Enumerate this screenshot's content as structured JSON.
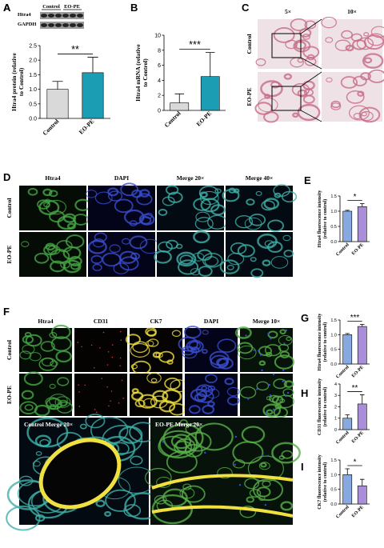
{
  "blot": {
    "panel": "A",
    "lanes": [
      "Control",
      "EO-PE"
    ],
    "rows": [
      "Htra4",
      "GAPDH"
    ]
  },
  "image_panels": [
    {
      "panel": "C",
      "columns": [
        "5×",
        "10×"
      ],
      "rows": [
        "Control",
        "EO-PE"
      ]
    },
    {
      "panel": "D",
      "columns": [
        "Htra4",
        "DAPI",
        "Merge 20×",
        "Merge 40×"
      ],
      "rows": [
        "Control",
        "EO-PE"
      ]
    },
    {
      "panel": "F",
      "columns": [
        "Htra4",
        "CD31",
        "CK7",
        "DAPI",
        "Merge 10×"
      ],
      "rows": [
        "Control",
        "EO-PE"
      ],
      "merges": [
        "Control Merge 20×",
        "EO-PE Merge 20×"
      ]
    }
  ],
  "chart_data": [
    {
      "type": "bar",
      "panel": "A",
      "ylabel": [
        "Htra4 protein (relative",
        "to Control)"
      ],
      "categories": [
        "Control",
        "EO-PE"
      ],
      "values": [
        1.0,
        1.57
      ],
      "errors": [
        0.27,
        0.53
      ],
      "colors": [
        "#d9d9d9",
        "#1b9db3"
      ],
      "ylim": [
        0,
        2.5
      ],
      "yticks": [
        {
          "value": 0,
          "label": "0.0"
        },
        0.5,
        {
          "value": 1,
          "label": "1.0"
        },
        1.5,
        {
          "value": 2,
          "label": "2.0"
        },
        2.5
      ],
      "significance": "**"
    },
    {
      "type": "bar",
      "panel": "B",
      "ylabel": [
        "Htra4 mRNA (relative",
        "to Control)"
      ],
      "categories": [
        "Control",
        "EO-PE"
      ],
      "values": [
        1.0,
        4.5
      ],
      "errors": [
        1.2,
        3.2
      ],
      "colors": [
        "#d9d9d9",
        "#1b9db3"
      ],
      "ylim": [
        0,
        10
      ],
      "yticks": [
        0,
        2,
        4,
        6,
        8,
        10
      ],
      "significance": "***"
    },
    {
      "type": "bar",
      "panel": "E",
      "ylabel": [
        "Htra4 fluorescence intensity",
        "(relative to control)"
      ],
      "categories": [
        "Control",
        "EO-PE"
      ],
      "values": [
        1.0,
        1.15
      ],
      "errors": [
        0.03,
        0.1
      ],
      "colors": [
        "#86a9e2",
        "#ab8ed9"
      ],
      "ylim": [
        0,
        1.5
      ],
      "yticks": [
        {
          "value": 0,
          "label": "0.0"
        },
        0.5,
        {
          "value": 1,
          "label": "1.0"
        },
        1.5
      ],
      "significance": "*"
    },
    {
      "type": "bar",
      "panel": "G",
      "ylabel": [
        "Htra4 fluorescence intensity",
        "(relative to control)"
      ],
      "categories": [
        "Control",
        "EO-PE"
      ],
      "values": [
        1.0,
        1.28
      ],
      "errors": [
        0.04,
        0.07
      ],
      "colors": [
        "#86a9e2",
        "#ab8ed9"
      ],
      "ylim": [
        0,
        1.5
      ],
      "yticks": [
        {
          "value": 0,
          "label": "0.0"
        },
        0.5,
        {
          "value": 1,
          "label": "1.0"
        },
        1.5
      ],
      "significance": "***"
    },
    {
      "type": "bar",
      "panel": "H",
      "ylabel": [
        "CD31 fluorescence intensity",
        "(relative to control)"
      ],
      "categories": [
        "Control",
        "EO-PE"
      ],
      "values": [
        1.0,
        2.25
      ],
      "errors": [
        0.3,
        0.8
      ],
      "colors": [
        "#86a9e2",
        "#ab8ed9"
      ],
      "ylim": [
        0,
        4
      ],
      "yticks": [
        0,
        1,
        2,
        3,
        4
      ],
      "significance": "**"
    },
    {
      "type": "bar",
      "panel": "I",
      "ylabel": [
        "CK7 fluorescence intensity",
        "(relative to control)"
      ],
      "categories": [
        "Control",
        "EO-PE"
      ],
      "values": [
        1.0,
        0.62
      ],
      "errors": [
        0.2,
        0.22
      ],
      "colors": [
        "#86a9e2",
        "#ab8ed9"
      ],
      "ylim": [
        0,
        1.5
      ],
      "yticks": [
        {
          "value": 0,
          "label": "0.0"
        },
        0.5,
        {
          "value": 1,
          "label": "1.0"
        },
        1.5
      ],
      "significance": "*"
    }
  ]
}
